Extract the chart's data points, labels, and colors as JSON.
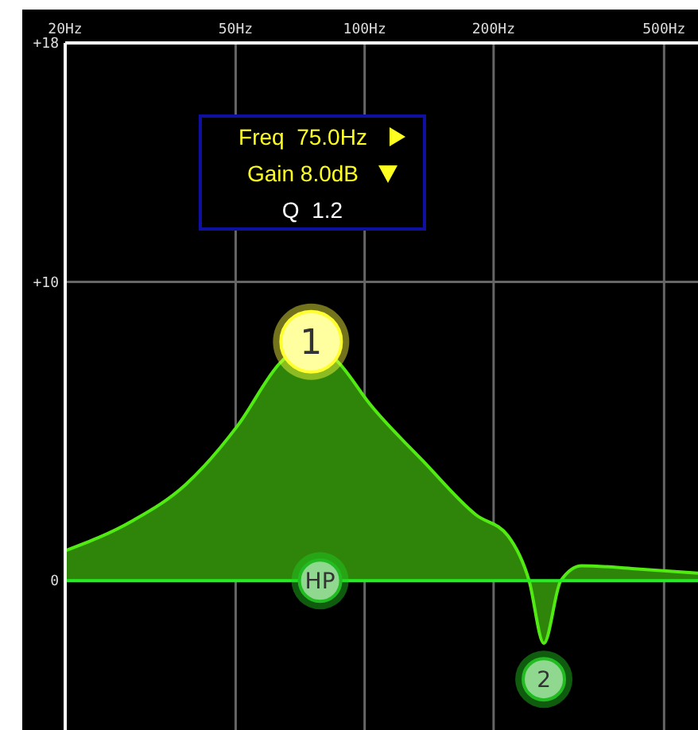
{
  "chart_data": {
    "type": "area",
    "log": "x",
    "x": [
      20,
      28.7,
      38.1,
      50.6,
      63.6,
      75,
      86.9,
      103,
      137,
      182,
      216,
      242,
      262,
      287,
      321,
      427,
      600
    ],
    "series": [
      {
        "color": "#2e850a",
        "values": [
          1.0,
          2.0,
          3.2,
          5.2,
          7.3,
          8.0,
          7.3,
          5.9,
          4.0,
          2.2,
          1.5,
          0,
          -2.1,
          0,
          0.5,
          0.4,
          0.25
        ]
      }
    ],
    "xlim": [
      20,
      600
    ],
    "ylim": [
      -5,
      18
    ],
    "xticks": [
      {
        "value": 20,
        "label": "20Hz"
      },
      {
        "value": 50,
        "label": "50Hz"
      },
      {
        "value": 100,
        "label": "100Hz"
      },
      {
        "value": 200,
        "label": "200Hz"
      },
      {
        "value": 500,
        "label": "500Hz"
      }
    ],
    "yticks": [
      {
        "value": 18,
        "label": "+18"
      },
      {
        "value": 10,
        "label": "+10"
      },
      {
        "value": 0,
        "label": "0"
      }
    ],
    "grid": true,
    "ref_lines": [
      {
        "axis": "y",
        "value": 0,
        "color": "#22ee22"
      }
    ],
    "annotations": [
      {
        "text": "1",
        "x": 75,
        "y": 8
      },
      {
        "text": "HP",
        "x": 78.7,
        "y": 0
      },
      {
        "text": "2",
        "x": 262,
        "y": -3.3
      },
      "Freq  75.0Hz",
      "Gain 8.0dB",
      "Q  1.2"
    ]
  }
}
